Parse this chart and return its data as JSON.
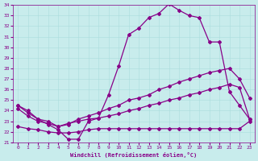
{
  "xlabel": "Windchill (Refroidissement éolien,°C)",
  "background_color": "#c8ecec",
  "line_color": "#880088",
  "grid_color": "#aadddd",
  "xlim": [
    -0.5,
    23.5
  ],
  "ylim": [
    21,
    34
  ],
  "xticks": [
    0,
    1,
    2,
    3,
    4,
    5,
    6,
    7,
    8,
    9,
    10,
    11,
    12,
    13,
    14,
    15,
    16,
    17,
    18,
    19,
    20,
    21,
    22,
    23
  ],
  "yticks": [
    21,
    22,
    23,
    24,
    25,
    26,
    27,
    28,
    29,
    30,
    31,
    32,
    33,
    34
  ],
  "line1_x": [
    0,
    1,
    2,
    3,
    4,
    5,
    6,
    7,
    8,
    9,
    10,
    11,
    12,
    13,
    14,
    15,
    16,
    17,
    18,
    19,
    20,
    21,
    22,
    23
  ],
  "line1_y": [
    24.5,
    24.0,
    23.2,
    22.7,
    22.2,
    21.3,
    21.3,
    23.0,
    23.3,
    25.5,
    28.2,
    31.2,
    31.8,
    32.8,
    33.2,
    34.1,
    33.5,
    33.0,
    32.8,
    30.5,
    30.5,
    25.8,
    24.5,
    23.2
  ],
  "line2_x": [
    0,
    1,
    2,
    3,
    4,
    5,
    6,
    7,
    8,
    9,
    10,
    11,
    12,
    13,
    14,
    15,
    16,
    17,
    18,
    19,
    20,
    21,
    22,
    23
  ],
  "line2_y": [
    24.5,
    23.8,
    23.2,
    23.0,
    22.5,
    22.7,
    23.2,
    23.5,
    23.8,
    24.2,
    24.5,
    25.0,
    25.2,
    25.5,
    26.0,
    26.3,
    26.7,
    27.0,
    27.3,
    27.6,
    27.8,
    28.0,
    27.0,
    25.2
  ],
  "line3_x": [
    0,
    1,
    2,
    3,
    4,
    5,
    6,
    7,
    8,
    9,
    10,
    11,
    12,
    13,
    14,
    15,
    16,
    17,
    18,
    19,
    20,
    21,
    22,
    23
  ],
  "line3_y": [
    24.2,
    23.5,
    23.0,
    22.8,
    22.5,
    22.8,
    23.0,
    23.2,
    23.3,
    23.5,
    23.7,
    24.0,
    24.2,
    24.5,
    24.7,
    25.0,
    25.2,
    25.5,
    25.7,
    26.0,
    26.2,
    26.5,
    26.2,
    23.2
  ],
  "line4_x": [
    0,
    1,
    2,
    3,
    4,
    5,
    6,
    7,
    8,
    9,
    10,
    11,
    12,
    13,
    14,
    15,
    16,
    17,
    18,
    19,
    20,
    21,
    22,
    23
  ],
  "line4_y": [
    22.5,
    22.3,
    22.2,
    22.0,
    21.9,
    21.9,
    22.0,
    22.2,
    22.3,
    22.3,
    22.3,
    22.3,
    22.3,
    22.3,
    22.3,
    22.3,
    22.3,
    22.3,
    22.3,
    22.3,
    22.3,
    22.3,
    22.3,
    23.0
  ],
  "marker": "D",
  "markersize": 2.0,
  "linewidth": 0.9
}
